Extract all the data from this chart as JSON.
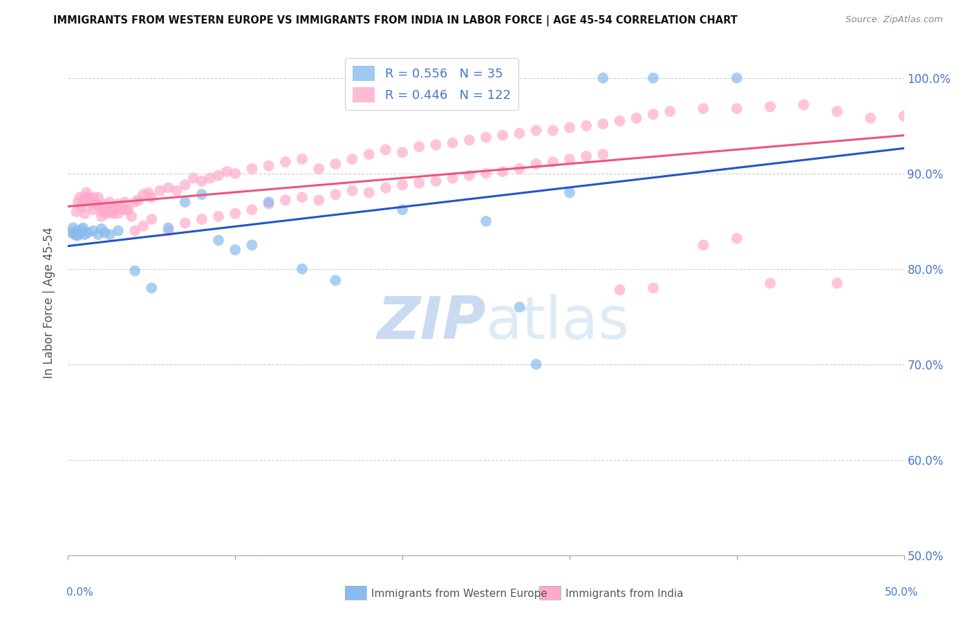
{
  "title": "IMMIGRANTS FROM WESTERN EUROPE VS IMMIGRANTS FROM INDIA IN LABOR FORCE | AGE 45-54 CORRELATION CHART",
  "source": "Source: ZipAtlas.com",
  "ylabel": "In Labor Force | Age 45-54",
  "xlim": [
    0.0,
    0.5
  ],
  "ylim": [
    0.5,
    1.03
  ],
  "y_ticks": [
    0.5,
    0.6,
    0.7,
    0.8,
    0.9,
    1.0
  ],
  "y_tick_labels": [
    "50.0%",
    "60.0%",
    "70.0%",
    "80.0%",
    "90.0%",
    "100.0%"
  ],
  "x_ticks": [
    0.0,
    0.1,
    0.2,
    0.3,
    0.4,
    0.5
  ],
  "x_tick_labels": [
    "",
    "",
    "",
    "",
    "",
    ""
  ],
  "blue_R": 0.556,
  "blue_N": 35,
  "pink_R": 0.446,
  "pink_N": 122,
  "blue_color": "#88bbee",
  "pink_color": "#ffaacc",
  "blue_line_color": "#2255cc",
  "pink_line_color": "#ee5577",
  "legend_label_blue": "Immigrants from Western Europe",
  "legend_label_pink": "Immigrants from India",
  "watermark_zip": "ZIP",
  "watermark_atlas": "atlas",
  "axis_color": "#4477cc",
  "title_color": "#111111",
  "source_color": "#888888",
  "blue_x": [
    0.002,
    0.003,
    0.004,
    0.005,
    0.006,
    0.007,
    0.008,
    0.009,
    0.01,
    0.012,
    0.015,
    0.018,
    0.02,
    0.022,
    0.025,
    0.03,
    0.04,
    0.05,
    0.06,
    0.07,
    0.08,
    0.09,
    0.1,
    0.11,
    0.12,
    0.14,
    0.16,
    0.2,
    0.25,
    0.27,
    0.28,
    0.3,
    0.32,
    0.35,
    0.4
  ],
  "blue_y": [
    0.838,
    0.843,
    0.836,
    0.84,
    0.835,
    0.838,
    0.841,
    0.843,
    0.836,
    0.838,
    0.84,
    0.836,
    0.842,
    0.838,
    0.836,
    0.84,
    0.798,
    0.78,
    0.843,
    0.87,
    0.878,
    0.83,
    0.82,
    0.825,
    0.87,
    0.8,
    0.788,
    0.862,
    0.85,
    0.76,
    0.7,
    0.88,
    1.0,
    1.0,
    1.0
  ],
  "pink_x": [
    0.003,
    0.005,
    0.006,
    0.007,
    0.008,
    0.009,
    0.01,
    0.011,
    0.012,
    0.013,
    0.014,
    0.015,
    0.016,
    0.017,
    0.018,
    0.019,
    0.02,
    0.021,
    0.022,
    0.023,
    0.024,
    0.025,
    0.026,
    0.027,
    0.028,
    0.029,
    0.03,
    0.032,
    0.034,
    0.036,
    0.038,
    0.04,
    0.042,
    0.045,
    0.048,
    0.05,
    0.055,
    0.06,
    0.065,
    0.07,
    0.075,
    0.08,
    0.085,
    0.09,
    0.095,
    0.1,
    0.11,
    0.12,
    0.13,
    0.14,
    0.15,
    0.16,
    0.17,
    0.18,
    0.19,
    0.2,
    0.21,
    0.22,
    0.23,
    0.24,
    0.25,
    0.26,
    0.27,
    0.28,
    0.29,
    0.3,
    0.31,
    0.32,
    0.33,
    0.34,
    0.35,
    0.36,
    0.38,
    0.4,
    0.42,
    0.44,
    0.46,
    0.48,
    0.005,
    0.01,
    0.015,
    0.02,
    0.025,
    0.03,
    0.035,
    0.04,
    0.045,
    0.05,
    0.06,
    0.07,
    0.08,
    0.09,
    0.1,
    0.11,
    0.12,
    0.13,
    0.14,
    0.15,
    0.16,
    0.17,
    0.18,
    0.19,
    0.2,
    0.21,
    0.22,
    0.23,
    0.24,
    0.25,
    0.26,
    0.27,
    0.28,
    0.29,
    0.3,
    0.31,
    0.32,
    0.33,
    0.35,
    0.38,
    0.4,
    0.42,
    0.46,
    0.5
  ],
  "pink_y": [
    0.838,
    0.86,
    0.87,
    0.875,
    0.865,
    0.87,
    0.875,
    0.88,
    0.875,
    0.872,
    0.868,
    0.875,
    0.87,
    0.868,
    0.875,
    0.865,
    0.86,
    0.868,
    0.862,
    0.858,
    0.865,
    0.87,
    0.86,
    0.858,
    0.865,
    0.862,
    0.868,
    0.862,
    0.87,
    0.862,
    0.855,
    0.87,
    0.872,
    0.878,
    0.88,
    0.875,
    0.882,
    0.885,
    0.882,
    0.888,
    0.895,
    0.892,
    0.895,
    0.898,
    0.902,
    0.9,
    0.905,
    0.908,
    0.912,
    0.915,
    0.905,
    0.91,
    0.915,
    0.92,
    0.925,
    0.922,
    0.928,
    0.93,
    0.932,
    0.935,
    0.938,
    0.94,
    0.942,
    0.945,
    0.945,
    0.948,
    0.95,
    0.952,
    0.955,
    0.958,
    0.962,
    0.965,
    0.968,
    0.968,
    0.97,
    0.972,
    0.965,
    0.958,
    0.835,
    0.858,
    0.862,
    0.855,
    0.86,
    0.858,
    0.862,
    0.84,
    0.845,
    0.852,
    0.84,
    0.848,
    0.852,
    0.855,
    0.858,
    0.862,
    0.868,
    0.872,
    0.875,
    0.872,
    0.878,
    0.882,
    0.88,
    0.885,
    0.888,
    0.89,
    0.892,
    0.895,
    0.898,
    0.9,
    0.902,
    0.905,
    0.91,
    0.912,
    0.915,
    0.918,
    0.92,
    0.778,
    0.78,
    0.825,
    0.832,
    0.785,
    0.785,
    0.96
  ]
}
